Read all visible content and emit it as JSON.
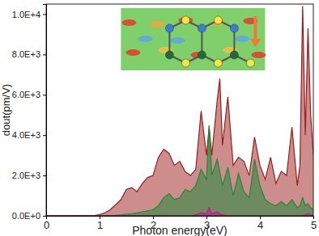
{
  "chart_data": {
    "type": "area",
    "x_label": "Photon energy(eV)",
    "y_label": "dout(pm/V)",
    "x": [
      0,
      0.5,
      0.9,
      1.0,
      1.1,
      1.2,
      1.3,
      1.4,
      1.5,
      1.6,
      1.7,
      1.8,
      1.9,
      2.0,
      2.1,
      2.2,
      2.3,
      2.4,
      2.5,
      2.6,
      2.7,
      2.8,
      2.9,
      3.0,
      3.05,
      3.1,
      3.2,
      3.25,
      3.3,
      3.4,
      3.5,
      3.6,
      3.7,
      3.8,
      3.9,
      4.0,
      4.1,
      4.2,
      4.3,
      4.4,
      4.5,
      4.6,
      4.7,
      4.75,
      4.8,
      4.85,
      4.9,
      4.95,
      5.0
    ],
    "series": [
      {
        "color": "#9b1c1c",
        "values": [
          0,
          0,
          20,
          60,
          150,
          300,
          550,
          800,
          1300,
          1400,
          1200,
          1600,
          1900,
          2000,
          2900,
          3300,
          3100,
          2500,
          2700,
          2200,
          2000,
          2300,
          5200,
          3000,
          4400,
          3000,
          5700,
          6800,
          3500,
          5900,
          2500,
          2900,
          2700,
          2000,
          3900,
          2500,
          1800,
          2900,
          1600,
          2200,
          2000,
          4400,
          1500,
          2500,
          10400,
          4000,
          9300,
          5000,
          3000
        ]
      },
      {
        "color": "#1f8a3a",
        "values": [
          0,
          0,
          0,
          0,
          0,
          20,
          30,
          50,
          80,
          100,
          150,
          200,
          250,
          300,
          500,
          900,
          1100,
          800,
          900,
          1300,
          1200,
          1500,
          2300,
          1800,
          4500,
          2000,
          2800,
          2200,
          1500,
          2400,
          1000,
          2100,
          1200,
          900,
          2800,
          1500,
          800,
          600,
          500,
          700,
          500,
          800,
          400,
          500,
          900,
          500,
          600,
          400,
          300
        ]
      },
      {
        "color": "#d0109a",
        "values": [
          0,
          0,
          0,
          0,
          0,
          0,
          0,
          0,
          0,
          0,
          0,
          0,
          0,
          0,
          0,
          0,
          0,
          0,
          0,
          0,
          0,
          50,
          150,
          100,
          400,
          100,
          200,
          100,
          50,
          0,
          0,
          0,
          0,
          0,
          0,
          0,
          0,
          0,
          0,
          0,
          0,
          0,
          0,
          0,
          0,
          50,
          100,
          50,
          0
        ]
      }
    ],
    "xlim": [
      0,
      5
    ],
    "xticks": [
      0,
      1,
      2,
      3,
      4,
      5
    ],
    "ylim": [
      0,
      10500
    ],
    "yticks": [
      {
        "value": 0,
        "label": "0.0E+0"
      },
      {
        "value": 2000,
        "label": "2.0E+3"
      },
      {
        "value": 4000,
        "label": "4.0E+3"
      },
      {
        "value": 6000,
        "label": "6.0E+3"
      },
      {
        "value": 8000,
        "label": "8.0E+3"
      },
      {
        "value": 10000,
        "label": "1.0E+4"
      }
    ]
  }
}
